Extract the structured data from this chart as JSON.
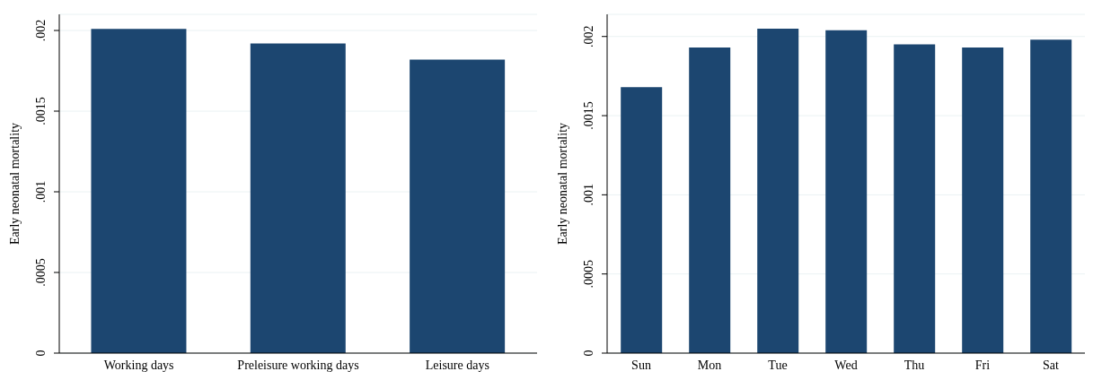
{
  "chart_data": [
    {
      "type": "bar",
      "ylabel": "Early neonatal mortality",
      "categories": [
        "Working days",
        "Preleisure working days",
        "Leisure days"
      ],
      "values": [
        0.00201,
        0.00192,
        0.00182
      ],
      "color": "#1c4670",
      "ylim": [
        0,
        0.0021
      ],
      "yticks": [
        {
          "value": 0,
          "label": "0"
        },
        {
          "value": 0.0005,
          "label": ".0005"
        },
        {
          "value": 0.001,
          "label": ".001"
        },
        {
          "value": 0.0015,
          "label": ".0015"
        },
        {
          "value": 0.002,
          "label": ".002"
        }
      ],
      "grid": "y",
      "legend": false
    },
    {
      "type": "bar",
      "ylabel": "Early neonatal mortality",
      "categories": [
        "Sun",
        "Mon",
        "Tue",
        "Wed",
        "Thu",
        "Fri",
        "Sat"
      ],
      "values": [
        0.00168,
        0.00193,
        0.00205,
        0.00204,
        0.00195,
        0.00193,
        0.00198
      ],
      "color": "#1c4670",
      "ylim": [
        0,
        0.00214
      ],
      "yticks": [
        {
          "value": 0,
          "label": "0"
        },
        {
          "value": 0.0005,
          "label": ".0005"
        },
        {
          "value": 0.001,
          "label": ".001"
        },
        {
          "value": 0.0015,
          "label": ".0015"
        },
        {
          "value": 0.002,
          "label": ".002"
        }
      ],
      "grid": "y",
      "legend": false
    }
  ]
}
